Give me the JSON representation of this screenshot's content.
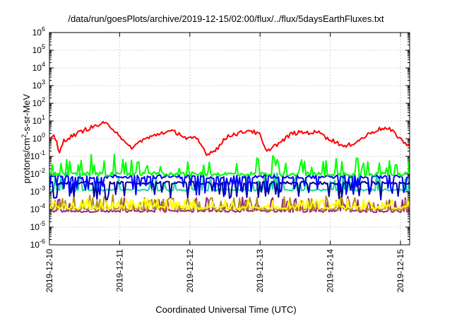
{
  "chart_data": {
    "type": "line",
    "title": "/data/run/goesPlots/archive/2019-12-15/02:00/flux/../flux/5daysEarthFluxes.txt",
    "xlabel": "Coordinated Universal Time (UTC)",
    "ylabel_main": "protons/cm",
    "ylabel_sup": "2",
    "ylabel_rest": "-s-sr-MeV",
    "yscale": "log",
    "ylim": [
      1e-06,
      1000000.0
    ],
    "y_ticks": [
      {
        "base": "10",
        "exp": "-6"
      },
      {
        "base": "10",
        "exp": "-5"
      },
      {
        "base": "10",
        "exp": "-4"
      },
      {
        "base": "10",
        "exp": "-3"
      },
      {
        "base": "10",
        "exp": "-2"
      },
      {
        "base": "10",
        "exp": "-1"
      },
      {
        "base": "10",
        "exp": "0"
      },
      {
        "base": "10",
        "exp": "1"
      },
      {
        "base": "10",
        "exp": "2"
      },
      {
        "base": "10",
        "exp": "3"
      },
      {
        "base": "10",
        "exp": "4"
      },
      {
        "base": "10",
        "exp": "5"
      },
      {
        "base": "10",
        "exp": "6"
      }
    ],
    "x_tick_labels": [
      "2019-12-10",
      "2019-12-11",
      "2019-12-12",
      "2019-12-13",
      "2019-12-14",
      "2019-12-15"
    ],
    "xlim_days": [
      0,
      5.13
    ],
    "grid": true,
    "series": [
      {
        "color": "#ff0000",
        "base_log": 0.2,
        "amp_log": 0.7,
        "noise_log": 0.12,
        "spike_log": 0,
        "spike_prob": 0,
        "anchors": [
          [
            0,
            0.1
          ],
          [
            0.06,
            0.2
          ],
          [
            0.1,
            -0.2
          ],
          [
            0.14,
            -0.9
          ],
          [
            0.2,
            -0.1
          ],
          [
            0.35,
            0.2
          ],
          [
            0.5,
            0.5
          ],
          [
            0.65,
            0.7
          ],
          [
            0.75,
            0.85
          ],
          [
            0.82,
            0.8
          ],
          [
            0.9,
            0.6
          ],
          [
            1.0,
            0.2
          ],
          [
            1.1,
            -0.4
          ],
          [
            1.2,
            -0.5
          ],
          [
            1.3,
            -0.1
          ],
          [
            1.45,
            0.1
          ],
          [
            1.6,
            0.35
          ],
          [
            1.75,
            0.4
          ],
          [
            1.85,
            0.3
          ],
          [
            1.95,
            0.0
          ],
          [
            2.1,
            0.0
          ],
          [
            2.2,
            -0.6
          ],
          [
            2.25,
            -0.9
          ],
          [
            2.4,
            -0.5
          ],
          [
            2.55,
            0.2
          ],
          [
            2.7,
            0.3
          ],
          [
            2.85,
            0.5
          ],
          [
            2.9,
            0.4
          ],
          [
            3.0,
            0.2
          ],
          [
            3.05,
            -0.4
          ],
          [
            3.1,
            -0.8
          ],
          [
            3.15,
            -0.5
          ],
          [
            3.3,
            -0.2
          ],
          [
            3.45,
            0.3
          ],
          [
            3.6,
            0.35
          ],
          [
            3.75,
            0.35
          ],
          [
            3.9,
            0.35
          ],
          [
            3.95,
            0.0
          ],
          [
            4.1,
            -0.2
          ],
          [
            4.2,
            -0.5
          ],
          [
            4.3,
            -0.3
          ],
          [
            4.45,
            0.0
          ],
          [
            4.6,
            0.4
          ],
          [
            4.75,
            0.6
          ],
          [
            4.85,
            0.5
          ],
          [
            4.95,
            0.2
          ],
          [
            5.05,
            -0.2
          ],
          [
            5.13,
            -0.5
          ]
        ]
      },
      {
        "color": "#00ff00",
        "base_log": -2.0,
        "amp_log": 0,
        "noise_log": 0.12,
        "spike_log": 1.0,
        "spike_prob": 0.22,
        "anchors": []
      },
      {
        "color": "#0000ff",
        "base_log": -2.15,
        "amp_log": 0,
        "noise_log": 0.1,
        "spike_log": -1.0,
        "spike_prob": 0.25,
        "anchors": []
      },
      {
        "color": "#0000a0",
        "base_log": -2.5,
        "amp_log": 0,
        "noise_log": 0.08,
        "spike_log": -0.9,
        "spike_prob": 0.22,
        "anchors": []
      },
      {
        "color": "#20d0a0",
        "base_log": -2.9,
        "amp_log": 0,
        "noise_log": 0.05,
        "spike_log": 1.0,
        "spike_prob": 0.2,
        "anchors": []
      },
      {
        "color": "#ffff00",
        "base_log": -3.9,
        "amp_log": 0,
        "noise_log": 0.08,
        "spike_log": 0.5,
        "spike_prob": 0.25,
        "anchors": []
      },
      {
        "color": "#b09020",
        "base_log": -4.0,
        "amp_log": 0,
        "noise_log": 0.08,
        "spike_log": 0.8,
        "spike_prob": 0.28,
        "anchors": []
      },
      {
        "color": "#a02080",
        "base_log": -4.1,
        "amp_log": 0,
        "noise_log": 0.06,
        "spike_log": 0.8,
        "spike_prob": 0.25,
        "anchors": []
      }
    ]
  }
}
